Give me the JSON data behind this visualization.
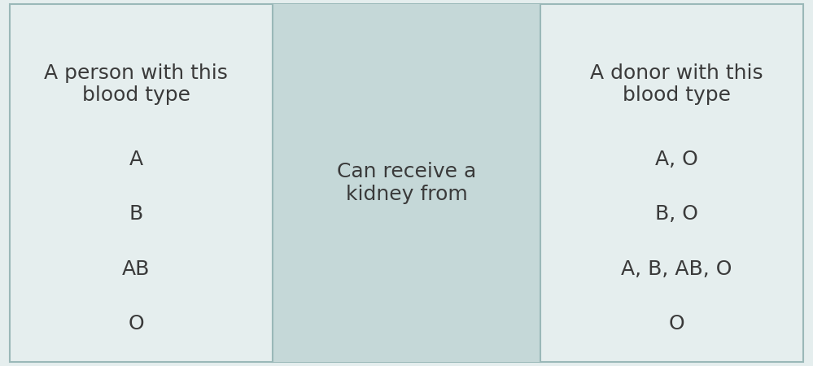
{
  "fig_width": 9.99,
  "fig_height": 4.5,
  "dpi": 100,
  "outer_bg": "#e5eeee",
  "left_col_bg": "#e5eeee",
  "mid_col_bg": "#c5d8d8",
  "border_color": "#9ab8b8",
  "text_color": "#3a3a3a",
  "left_header": "A person with this\nblood type",
  "mid_header": "Can receive a\nkidney from",
  "right_header": "A donor with this\nblood type",
  "left_items": [
    "A",
    "B",
    "AB",
    "O"
  ],
  "right_items": [
    "A, O",
    "B, O",
    "A, B, AB, O",
    "O"
  ],
  "header_fontsize": 18,
  "item_fontsize": 18,
  "mid_fontsize": 18
}
